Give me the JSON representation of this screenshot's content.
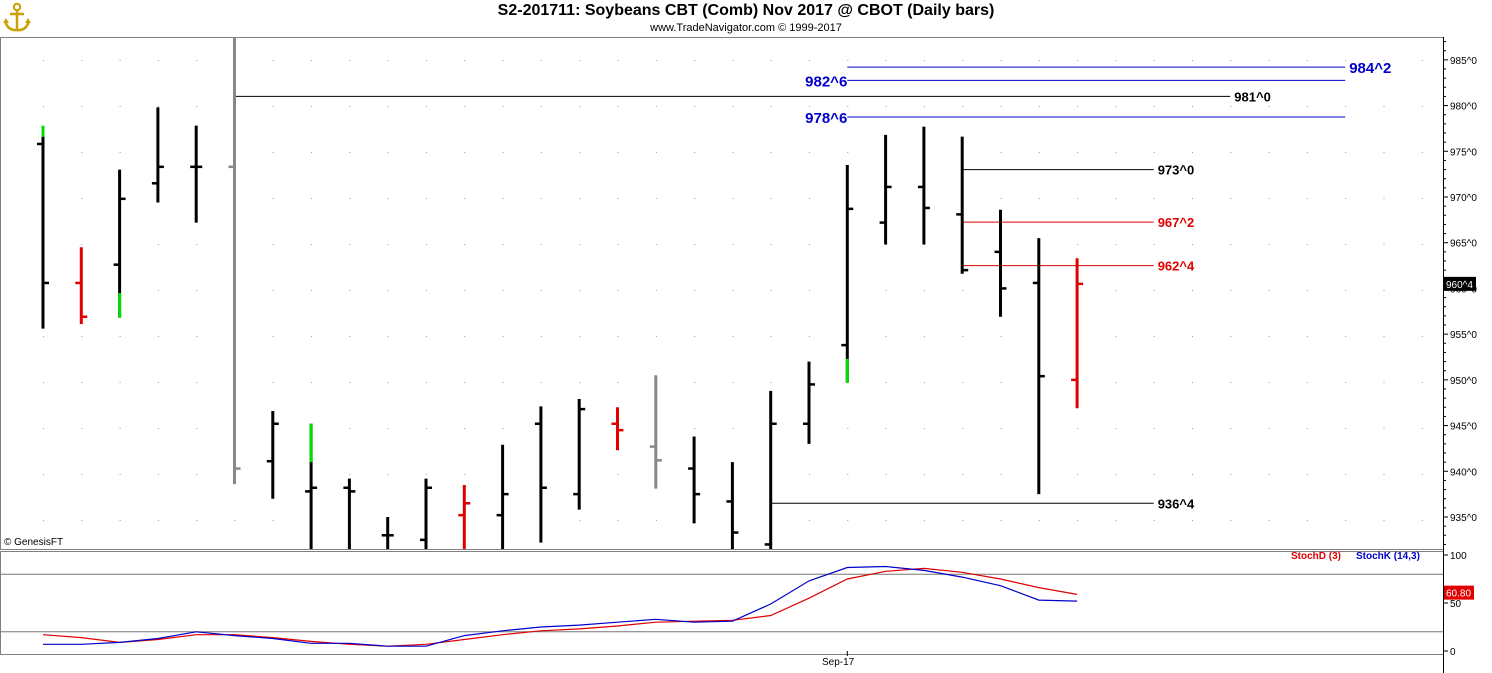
{
  "header": {
    "title": "S2-201711:  Soybeans CBT (Comb) Nov 2017 @ CBOT  (Daily bars)",
    "subtitle": "www.TradeNavigator.com © 1999-2017"
  },
  "credit": "© GenesisFT",
  "colors": {
    "up_bar": "#000000",
    "down_bar": "#e00000",
    "limit_bar": "#00dd00",
    "neutral_bar": "#888888",
    "stoch_d": "#e00000",
    "stoch_k": "#0000cc",
    "level_blue": "#0000cc",
    "level_red": "#e00000",
    "level_black": "#000000",
    "last_price_bg": "#000000"
  },
  "chart_data": [
    {
      "type": "ohlc",
      "title": "S2-201711:  Soybeans CBT (Comb) Nov 2017 @ CBOT  (Daily bars)",
      "y_axis": {
        "ylim": [
          931.5,
          987.5
        ],
        "ticks": [
          {
            "v": 935.0,
            "label": "935^0"
          },
          {
            "v": 940.0,
            "label": "940^0"
          },
          {
            "v": 945.0,
            "label": "945^0"
          },
          {
            "v": 950.0,
            "label": "950^0"
          },
          {
            "v": 955.0,
            "label": "955^0"
          },
          {
            "v": 960.0,
            "label": "960^0"
          },
          {
            "v": 965.0,
            "label": "965^0"
          },
          {
            "v": 970.0,
            "label": "970^0"
          },
          {
            "v": 975.0,
            "label": "975^0"
          },
          {
            "v": 980.0,
            "label": "980^0"
          },
          {
            "v": 985.0,
            "label": "985^0"
          }
        ],
        "last_price": {
          "v": 960.5,
          "label": "960^4"
        }
      },
      "x_axis": {
        "labels": [
          {
            "bar": 21,
            "label": "Sep-17"
          }
        ]
      },
      "bars": [
        {
          "o": 975.8,
          "h": 976.6,
          "l": 955.6,
          "c": 960.6,
          "color": "black",
          "green_top": [
            976.6,
            977.8
          ]
        },
        {
          "o": 960.6,
          "h": 964.5,
          "l": 956.1,
          "c": 956.9,
          "color": "red"
        },
        {
          "o": 962.6,
          "h": 973.0,
          "l": 956.8,
          "c": 969.8,
          "color": "black",
          "green_bot": [
            956.8,
            959.5
          ]
        },
        {
          "o": 971.5,
          "h": 979.8,
          "l": 969.4,
          "c": 973.3,
          "color": "black"
        },
        {
          "o": 973.3,
          "h": 977.8,
          "l": 967.2,
          "c": 973.3,
          "color": "black"
        },
        {
          "o": 973.3,
          "h": 987.5,
          "l": 938.6,
          "c": 940.3,
          "color": "gray"
        },
        {
          "o": 941.1,
          "h": 946.6,
          "l": 937.0,
          "c": 945.2,
          "color": "black"
        },
        {
          "o": 937.8,
          "h": 945.2,
          "l": 931.5,
          "c": 938.2,
          "color": "black",
          "green_top": [
            941.0,
            945.2
          ]
        },
        {
          "o": 938.2,
          "h": 939.2,
          "l": 931.5,
          "c": 937.8,
          "color": "black"
        },
        {
          "o": 933.0,
          "h": 935.0,
          "l": 931.5,
          "c": 933.0,
          "color": "black"
        },
        {
          "o": 932.5,
          "h": 939.2,
          "l": 931.5,
          "c": 938.2,
          "color": "black"
        },
        {
          "o": 935.2,
          "h": 938.5,
          "l": 931.5,
          "c": 936.5,
          "color": "red"
        },
        {
          "o": 935.2,
          "h": 942.9,
          "l": 931.5,
          "c": 937.5,
          "color": "black"
        },
        {
          "o": 945.2,
          "h": 947.1,
          "l": 932.2,
          "c": 938.2,
          "color": "black"
        },
        {
          "o": 937.5,
          "h": 947.9,
          "l": 935.8,
          "c": 946.8,
          "color": "black"
        },
        {
          "o": 945.2,
          "h": 947.0,
          "l": 942.3,
          "c": 944.5,
          "color": "red"
        },
        {
          "o": 942.7,
          "h": 950.5,
          "l": 938.1,
          "c": 941.2,
          "color": "gray"
        },
        {
          "o": 940.3,
          "h": 943.8,
          "l": 934.3,
          "c": 937.5,
          "color": "black"
        },
        {
          "o": 936.7,
          "h": 941.0,
          "l": 931.5,
          "c": 933.3,
          "color": "black"
        },
        {
          "o": 932.0,
          "h": 948.8,
          "l": 931.5,
          "c": 945.2,
          "color": "black"
        },
        {
          "o": 945.2,
          "h": 952.0,
          "l": 943.0,
          "c": 949.5,
          "color": "black"
        },
        {
          "o": 953.8,
          "h": 973.5,
          "l": 949.7,
          "c": 968.7,
          "color": "black",
          "green_bot": [
            949.7,
            952.3
          ]
        },
        {
          "o": 967.2,
          "h": 976.8,
          "l": 964.8,
          "c": 971.1,
          "color": "black"
        },
        {
          "o": 971.1,
          "h": 977.7,
          "l": 964.8,
          "c": 968.8,
          "color": "black"
        },
        {
          "o": 968.1,
          "h": 976.6,
          "l": 961.6,
          "c": 962.0,
          "color": "black"
        },
        {
          "o": 964.0,
          "h": 968.6,
          "l": 956.9,
          "c": 960.0,
          "color": "black"
        },
        {
          "o": 960.6,
          "h": 965.5,
          "l": 937.5,
          "c": 950.4,
          "color": "black"
        },
        {
          "o": 950.0,
          "h": 963.3,
          "l": 946.9,
          "c": 960.5,
          "color": "red"
        }
      ],
      "levels": [
        {
          "label": "984^2",
          "v": 984.2,
          "color": "blue",
          "from_bar": 21,
          "to_bar": 34
        },
        {
          "label": "982^6",
          "v": 982.75,
          "color": "blue",
          "from_bar": 21,
          "to_bar": 34
        },
        {
          "label": "981^0",
          "v": 981.0,
          "color": "black",
          "from_bar": 5,
          "to_bar": 31
        },
        {
          "label": "978^6",
          "v": 978.75,
          "color": "blue",
          "from_bar": 21,
          "to_bar": 34
        },
        {
          "label": "973^0",
          "v": 973.0,
          "color": "black",
          "from_bar": 24,
          "to_bar": 29
        },
        {
          "label": "967^2",
          "v": 967.25,
          "color": "red",
          "from_bar": 24,
          "to_bar": 29
        },
        {
          "label": "962^4",
          "v": 962.5,
          "color": "red",
          "from_bar": 24,
          "to_bar": 29
        },
        {
          "label": "936^4",
          "v": 936.5,
          "color": "black",
          "from_bar": 19,
          "to_bar": 29
        }
      ]
    },
    {
      "type": "line",
      "title": "",
      "ylim": [
        0,
        100
      ],
      "ticks": [
        {
          "v": 0,
          "label": "0"
        },
        {
          "v": 50,
          "label": "50"
        },
        {
          "v": 100,
          "label": "100"
        }
      ],
      "reference_lines": [
        20,
        80
      ],
      "last_value": {
        "v": 60.8,
        "label": "60.80"
      },
      "series": [
        {
          "name": "StochD (3)",
          "color": "red",
          "values": [
            17,
            14,
            9,
            12,
            17,
            17,
            14,
            10,
            7,
            5,
            7,
            12,
            17,
            21,
            23,
            26,
            30,
            31,
            32,
            37,
            55,
            75,
            83,
            86,
            82,
            75,
            66,
            59
          ]
        },
        {
          "name": "StochK (14,3)",
          "color": "blue",
          "values": [
            7,
            7,
            9,
            13,
            20,
            16,
            13,
            8,
            8,
            5,
            5,
            16,
            21,
            25,
            27,
            30,
            33,
            30,
            31,
            49,
            73,
            87,
            88,
            84,
            77,
            68,
            53,
            52
          ]
        }
      ]
    }
  ]
}
